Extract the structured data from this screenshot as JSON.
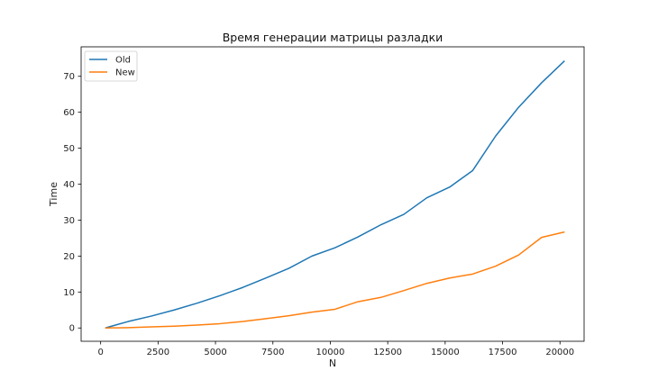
{
  "chart_data": {
    "type": "line",
    "title": "Время генерации матрицы разладки",
    "xlabel": "N",
    "ylabel": "Time",
    "xlim": [
      -850,
      21050
    ],
    "ylim": [
      -3.7,
      78.2
    ],
    "xticks": [
      0,
      2500,
      5000,
      7500,
      10000,
      12500,
      15000,
      17500,
      20000
    ],
    "yticks": [
      0,
      10,
      20,
      30,
      40,
      50,
      60,
      70
    ],
    "grid": false,
    "legend_position": "top-left",
    "x": [
      200,
      1200,
      2200,
      3200,
      4200,
      5200,
      6200,
      7200,
      8200,
      9200,
      10200,
      11200,
      12200,
      13200,
      14200,
      15200,
      16200,
      17200,
      18200,
      19200,
      20200
    ],
    "series": [
      {
        "name": "Old",
        "color": "#1f77b4",
        "values": [
          0.0,
          1.8,
          3.3,
          5.0,
          6.9,
          9.0,
          11.3,
          13.9,
          16.6,
          20.0,
          22.3,
          25.3,
          28.7,
          31.6,
          36.2,
          39.2,
          43.8,
          53.4,
          61.4,
          68.2,
          74.3
        ]
      },
      {
        "name": "New",
        "color": "#ff7f0e",
        "values": [
          0.0,
          0.1,
          0.3,
          0.5,
          0.8,
          1.2,
          1.8,
          2.6,
          3.4,
          4.4,
          5.2,
          7.3,
          8.5,
          10.4,
          12.4,
          13.9,
          15.0,
          17.2,
          20.3,
          25.2,
          26.7
        ]
      }
    ]
  }
}
